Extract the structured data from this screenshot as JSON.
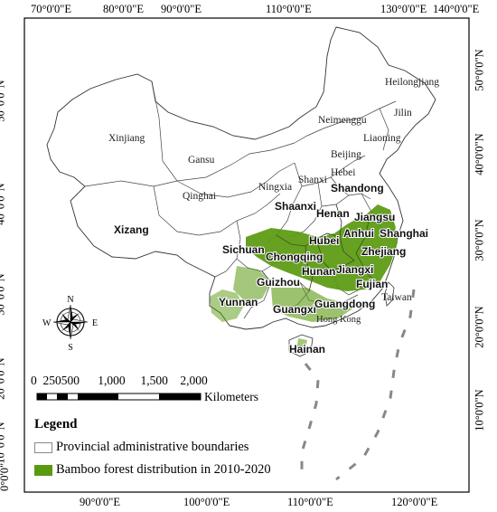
{
  "top_axis": [
    "70°0'0\"E",
    "80°0'0\"E",
    "90°0'0\"E",
    "110°0'0\"E",
    "130°0'0\"E",
    "140°0'0\"E"
  ],
  "bottom_axis": [
    "90°0'0\"E",
    "100°0'0\"E",
    "110°0'0\"E",
    "120°0'0\"E"
  ],
  "left_axis": [
    "50°0'0\"N",
    "40°0'0\"N",
    "30°0'0\"N",
    "20°0'0\"N",
    "10°0'0\"N",
    "0°0'0\""
  ],
  "right_axis": [
    "50°0'0\"N",
    "40°0'0\"N",
    "30°0'0\"N",
    "20°0'0\"N",
    "10°0'0\"N"
  ],
  "provinces_regular": [
    "Heilongjiang",
    "Jilin",
    "Xinjiang",
    "Neimenggu",
    "Liaoning",
    "Gansu",
    "Beijing",
    "Hebei",
    "Qinghai",
    "Ningxia",
    "Shanxi",
    "Taiwan",
    "Hong Kong"
  ],
  "provinces_bamboo": [
    "Shandong",
    "Xizang",
    "Shaanxi",
    "Henan",
    "Jiangsu",
    "Anhui",
    "Shanghai",
    "Sichuan",
    "Hubei",
    "Chongqing",
    "Zhejiang",
    "Hunan",
    "Jiangxi",
    "Guizhou",
    "Fujian",
    "Yunnan",
    "Guangxi",
    "Guangdong",
    "Hainan"
  ],
  "compass": {
    "n": "N",
    "s": "S",
    "e": "E",
    "w": "W"
  },
  "scale": {
    "ticks": "0  250500      1,000     1,500    2,000",
    "unit": "Kilometers"
  },
  "legend": {
    "title": "Legend",
    "items": [
      {
        "label": "Provincial administrative boundaries",
        "color": "#ffffff"
      },
      {
        "label": "Bamboo forest distribution in 2010-2020",
        "color": "#5a9a10"
      }
    ]
  }
}
